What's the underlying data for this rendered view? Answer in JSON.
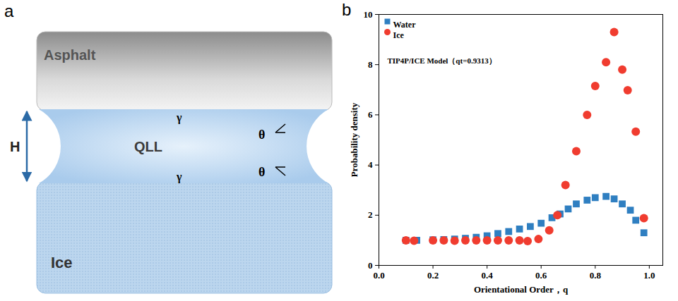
{
  "diagram": {
    "panel_label": "a",
    "labels": {
      "top": "Asphalt",
      "middle": "QLL",
      "bottom": "Ice",
      "height": "H",
      "angles": [
        "θ",
        "θ"
      ],
      "tensions": [
        "γ",
        "γ"
      ]
    }
  },
  "chart_data": {
    "type": "scatter",
    "panel_label": "b",
    "annotation": "TIP4P/ICE Model（qt=0.9313）",
    "x_label": "Orientational Order，q",
    "y_label": "Probability density",
    "xlim": [
      0,
      1.05
    ],
    "ylim": [
      0,
      10
    ],
    "xticks": [
      {
        "value": 0,
        "label": "0.0"
      },
      0.2,
      0.4,
      0.6,
      0.8,
      {
        "value": 1,
        "label": "1.0"
      }
    ],
    "yticks": [
      0,
      2,
      4,
      6,
      8,
      10
    ],
    "grid": false,
    "legend": "top-left",
    "series": [
      {
        "name": "Water",
        "color": "#2f7fc1",
        "marker": "square",
        "x": [
          0.1,
          0.14,
          0.2,
          0.24,
          0.28,
          0.32,
          0.36,
          0.4,
          0.44,
          0.48,
          0.52,
          0.56,
          0.6,
          0.64,
          0.67,
          0.7,
          0.73,
          0.77,
          0.8,
          0.84,
          0.87,
          0.9,
          0.93,
          0.95,
          0.98
        ],
        "values": [
          1.0,
          1.0,
          1.02,
          1.03,
          1.05,
          1.08,
          1.12,
          1.18,
          1.27,
          1.35,
          1.45,
          1.55,
          1.68,
          1.9,
          2.05,
          2.25,
          2.45,
          2.6,
          2.7,
          2.75,
          2.65,
          2.45,
          2.2,
          1.8,
          1.3
        ]
      },
      {
        "name": "Ice",
        "color": "#f03c2f",
        "marker": "circle",
        "x": [
          0.1,
          0.13,
          0.2,
          0.24,
          0.28,
          0.32,
          0.36,
          0.4,
          0.44,
          0.48,
          0.52,
          0.55,
          0.59,
          0.63,
          0.66,
          0.69,
          0.73,
          0.77,
          0.8,
          0.84,
          0.87,
          0.9,
          0.92,
          0.95,
          0.98
        ],
        "values": [
          1.0,
          0.98,
          1.0,
          1.0,
          0.98,
          1.0,
          1.0,
          1.0,
          1.0,
          1.0,
          1.0,
          0.97,
          1.05,
          1.4,
          2.0,
          3.2,
          4.55,
          6.0,
          7.15,
          8.1,
          9.3,
          7.8,
          6.98,
          5.33,
          1.88
        ]
      }
    ]
  }
}
